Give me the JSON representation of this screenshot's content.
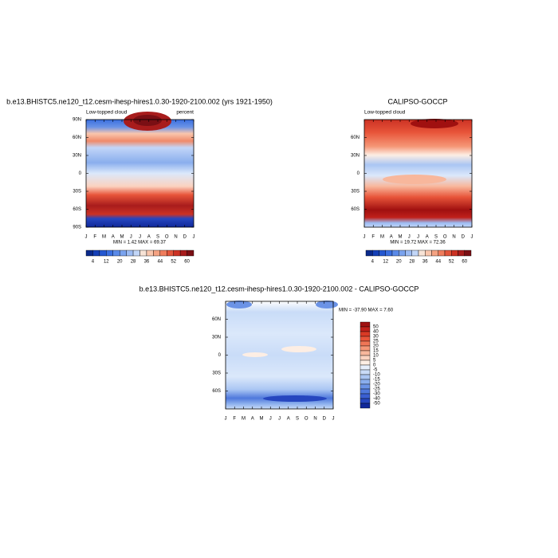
{
  "panels": [
    {
      "title": "b.e13.BHISTC5.ne120_t12.cesm-ihesp-hires1.0.30-1920-2100.002 (yrs 1921-1950)",
      "left_label": "Low-topped cloud",
      "right_label": "percent",
      "yticks": [
        "90N",
        "60N",
        "30N",
        "0",
        "30S",
        "60S",
        "90S"
      ],
      "xticks": [
        "J",
        "F",
        "M",
        "A",
        "M",
        "J",
        "J",
        "A",
        "S",
        "O",
        "N",
        "D",
        "J"
      ],
      "stats": "MIN =   1.42 MAX =  69.37"
    },
    {
      "title": "CALIPSO-GOCCP",
      "left_label": "Low-topped cloud",
      "yticks": [
        "60N",
        "30N",
        "0",
        "30S",
        "60S"
      ],
      "xticks": [
        "J",
        "F",
        "M",
        "A",
        "M",
        "J",
        "J",
        "A",
        "S",
        "O",
        "N",
        "D",
        "J"
      ],
      "stats": "MIN =  19.72 MAX =  72.36"
    },
    {
      "title": "b.e13.BHISTC5.ne120_t12.cesm-ihesp-hires1.0.30-1920-2100.002 - CALIPSO-GOCCP",
      "yticks": [
        "60N",
        "30N",
        "0",
        "30S",
        "60S"
      ],
      "xticks": [
        "J",
        "F",
        "M",
        "A",
        "M",
        "J",
        "J",
        "A",
        "S",
        "O",
        "N",
        "D",
        "J"
      ],
      "stats": "MIN = -37.90 MAX =   7.60"
    }
  ],
  "colorbar_abs": {
    "labels": [
      "4",
      "12",
      "20",
      "28",
      "36",
      "44",
      "52",
      "60"
    ],
    "colors": [
      "#0a2a8c",
      "#1540b8",
      "#2457d0",
      "#3a6fe0",
      "#5a8ae8",
      "#7aa3ee",
      "#9dbcf3",
      "#c2d6f8",
      "#f7e3d6",
      "#f9c6ad",
      "#f5a383",
      "#ef7d5d",
      "#e2553b",
      "#cc3224",
      "#a81c1c",
      "#7a0f14"
    ]
  },
  "colorbar_diff": {
    "labels": [
      "50",
      "40",
      "30",
      "25",
      "20",
      "15",
      "10",
      "5",
      "0",
      "-5",
      "-10",
      "-15",
      "-20",
      "-25",
      "-30",
      "-40",
      "-50"
    ],
    "colors": [
      "#a01010",
      "#c0201a",
      "#d93a25",
      "#e8553a",
      "#f07656",
      "#f59777",
      "#f8b79c",
      "#fbd3c0",
      "#fdeee4",
      "#e6effc",
      "#c9dcf8",
      "#aac6f3",
      "#8aaeed",
      "#6b93e6",
      "#4f78dc",
      "#3a5fd2",
      "#2646bf",
      "#10289a"
    ]
  }
}
